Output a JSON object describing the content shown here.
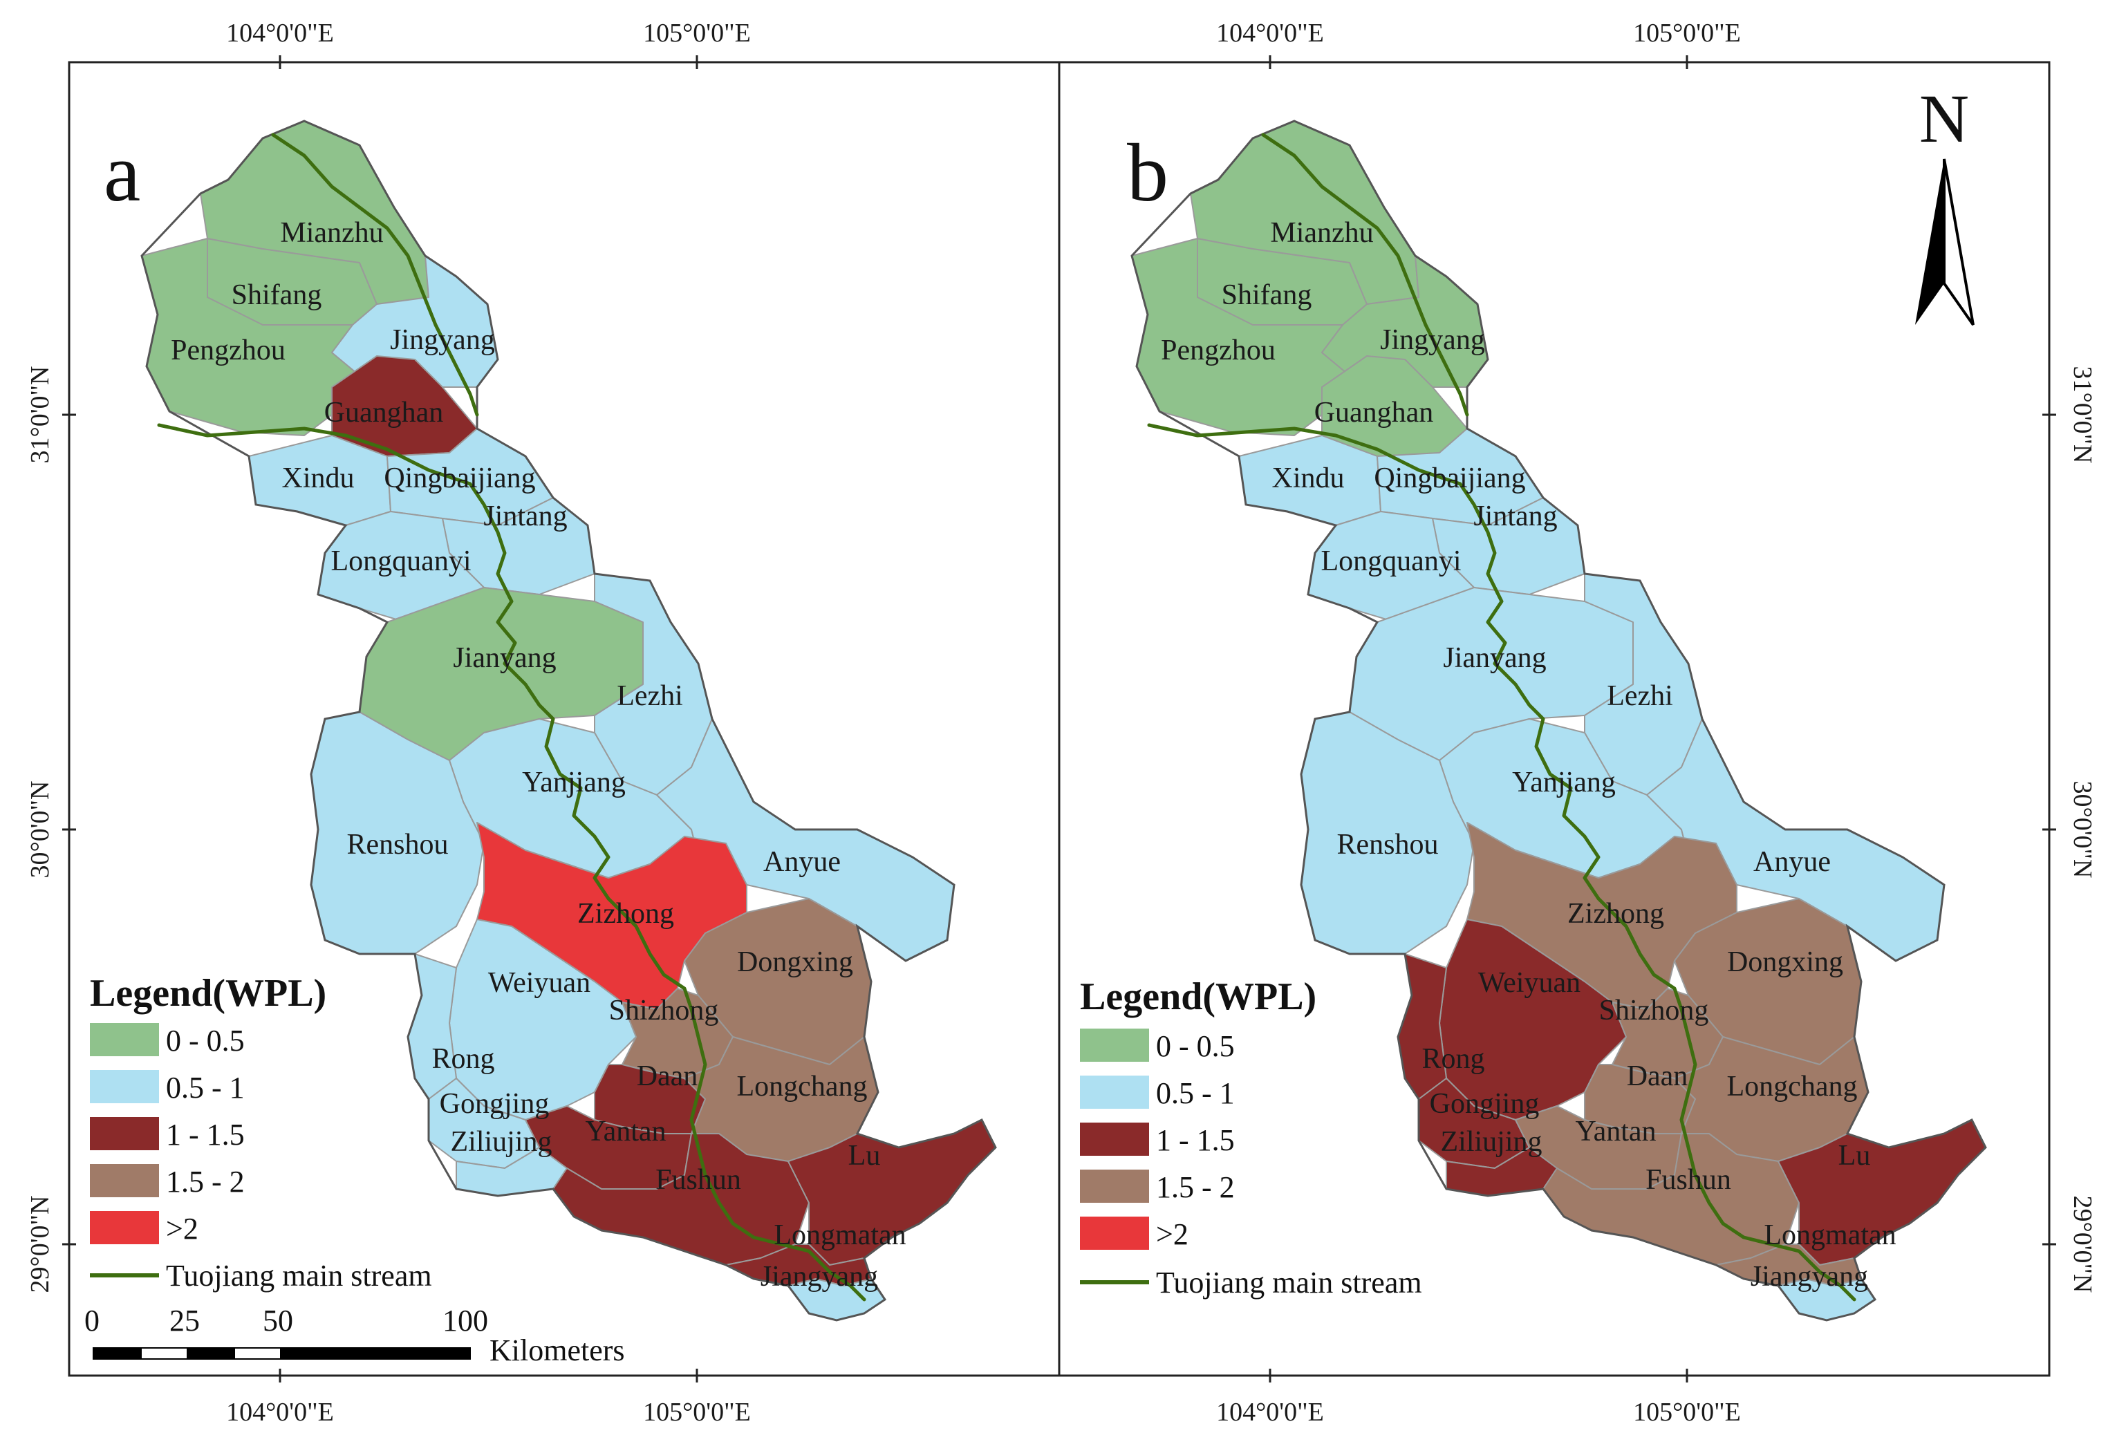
{
  "colors": {
    "c1": "#8fc28c",
    "c2": "#aee0f2",
    "c3": "#8a2a2a",
    "c4": "#a07b68",
    "c5": "#e8373a",
    "river": "#3e6e10"
  },
  "axes": {
    "lon1": "104°0'0\"E",
    "lon2": "105°0'0\"E",
    "lat1": "31°0'0\"N",
    "lat2": "30°0'0\"N",
    "lat3": "29°0'0\"N"
  },
  "panels": [
    {
      "letter": "a",
      "legend": {
        "title": "Legend(WPL)",
        "items": [
          "0 - 0.5",
          "0.5 - 1",
          "1 - 1.5",
          "1.5 - 2",
          ">2"
        ],
        "river_label": "Tuojiang main stream"
      },
      "classes": {
        "Mianzhu": "c1",
        "Shifang": "c1",
        "Pengzhou": "c1",
        "Jingyang": "c2",
        "Guanghan": "c3",
        "Xindu": "c2",
        "Qingbaijiang": "c2",
        "Jintang": "c2",
        "Longquanyi": "c2",
        "Jianyang": "c1",
        "Lezhi": "c2",
        "Yanjiang": "c2",
        "Renshou": "c2",
        "Zizhong": "c5",
        "Anyue": "c2",
        "Dongxing": "c4",
        "Weiyuan": "c2",
        "Shizhong": "c4",
        "Rong": "c2",
        "Gongjing": "c2",
        "Ziliujing": "c2",
        "Daan": "c3",
        "Longchang": "c4",
        "Yantan": "c3",
        "Fushun": "c3",
        "Lu": "c3",
        "Longmatan": "c3",
        "Jiangyang": "c2"
      }
    },
    {
      "letter": "b",
      "legend": {
        "title": "Legend(WPL)",
        "items": [
          "0 - 0.5",
          "0.5 - 1",
          "1 - 1.5",
          "1.5 - 2",
          ">2"
        ],
        "river_label": "Tuojiang main stream"
      },
      "classes": {
        "Mianzhu": "c1",
        "Shifang": "c1",
        "Pengzhou": "c1",
        "Jingyang": "c1",
        "Guanghan": "c1",
        "Xindu": "c2",
        "Qingbaijiang": "c2",
        "Jintang": "c2",
        "Longquanyi": "c2",
        "Jianyang": "c2",
        "Lezhi": "c2",
        "Yanjiang": "c2",
        "Renshou": "c2",
        "Zizhong": "c4",
        "Anyue": "c2",
        "Dongxing": "c4",
        "Weiyuan": "c3",
        "Shizhong": "c4",
        "Rong": "c3",
        "Gongjing": "c3",
        "Ziliujing": "c3",
        "Daan": "c4",
        "Longchang": "c4",
        "Yantan": "c4",
        "Fushun": "c4",
        "Lu": "c3",
        "Longmatan": "c4",
        "Jiangyang": "c2"
      }
    }
  ],
  "labels": {
    "Mianzhu": "Mianzhu",
    "Shifang": "Shifang",
    "Pengzhou": "Pengzhou",
    "Jingyang": "Jingyang",
    "Guanghan": "Guanghan",
    "Xindu": "Xindu",
    "Qingbaijiang": "Qingbaijiang",
    "Jintang": "Jintang",
    "Longquanyi": "Longquanyi",
    "Jianyang": "Jianyang",
    "Lezhi": "Lezhi",
    "Yanjiang": "Yanjiang",
    "Renshou": "Renshou",
    "Zizhong": "Zizhong",
    "Anyue": "Anyue",
    "Dongxing": "Dongxing",
    "Weiyuan": "Weiyuan",
    "Shizhong": "Shizhong",
    "Rong": "Rong",
    "Gongjing": "Gongjing",
    "Ziliujing": "Ziliujing",
    "Daan": "Daan",
    "Longchang": "Longchang",
    "Yantan": "Yantan",
    "Fushun": "Fushun",
    "Lu": "Lu",
    "Longmatan": "Longmatan",
    "Jiangyang": "Jiangyang"
  },
  "north_arrow": {
    "label": "N"
  },
  "scale_bar": {
    "ticks": [
      "0",
      "25",
      "50",
      "100"
    ],
    "unit": "Kilometers"
  }
}
